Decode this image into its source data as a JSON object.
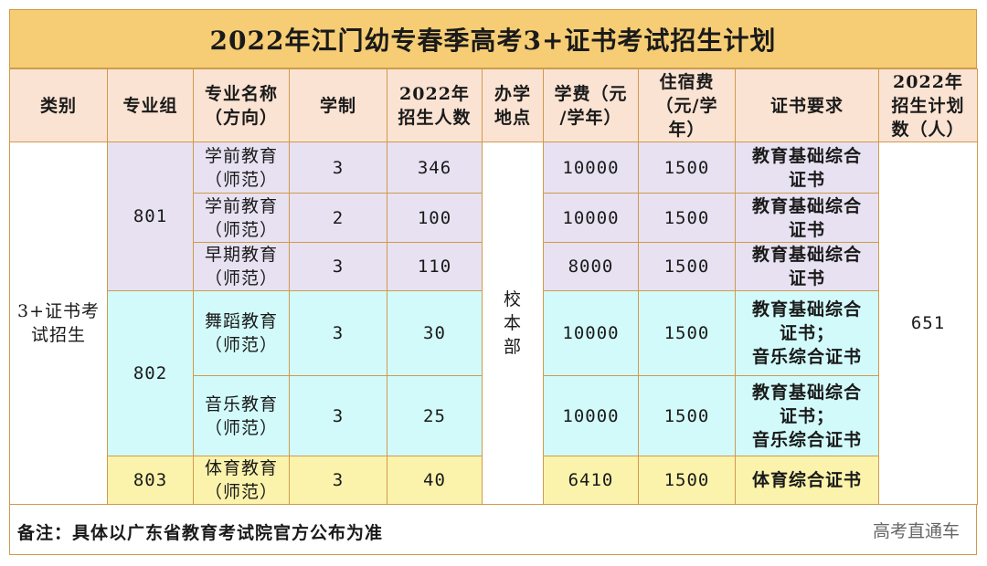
{
  "title": "2022年江门幼专春季高考3+证书考试招生计划",
  "headers": {
    "category": "类别",
    "group": "专业组",
    "major": "专业名称\n（方向）",
    "years": "学制",
    "enroll": "2022年\n招生人数",
    "campus": "办学\n地点",
    "tuition": "学费（元\n/学年）",
    "dorm": "住宿费\n（元/学\n年）",
    "cert": "证书要求",
    "plan": "2022年\n招生计划\n数（人）"
  },
  "category": "3+证书考\n试招生",
  "campus": "校\n本\n部",
  "plan_total": "651",
  "groups": [
    {
      "code": "801"
    },
    {
      "code": "802"
    },
    {
      "code": "803"
    }
  ],
  "rows": [
    {
      "major": "学前教育\n（师范）",
      "years": "3",
      "enroll": "346",
      "tuition": "10000",
      "dorm": "1500",
      "cert": "教育基础综合\n证书"
    },
    {
      "major": "学前教育\n（师范）",
      "years": "2",
      "enroll": "100",
      "tuition": "10000",
      "dorm": "1500",
      "cert": "教育基础综合\n证书"
    },
    {
      "major": "早期教育\n（师范）",
      "years": "3",
      "enroll": "110",
      "tuition": "8000",
      "dorm": "1500",
      "cert": "教育基础综合\n证书"
    },
    {
      "major": "舞蹈教育\n（师范）",
      "years": "3",
      "enroll": "30",
      "tuition": "10000",
      "dorm": "1500",
      "cert": "教育基础综合\n证书；\n音乐综合证书"
    },
    {
      "major": "音乐教育\n（师范）",
      "years": "3",
      "enroll": "25",
      "tuition": "10000",
      "dorm": "1500",
      "cert": "教育基础综合\n证书；\n音乐综合证书"
    },
    {
      "major": "体育教育\n（师范）",
      "years": "3",
      "enroll": "40",
      "tuition": "6410",
      "dorm": "1500",
      "cert": "体育综合证书"
    }
  ],
  "note": "备注：具体以广东省教育考试院官方公布为准",
  "watermark": "高考直通车",
  "colors": {
    "border": "#d09a4c",
    "title_bg": "#f6cd74",
    "header_bg": "#fbe3d3",
    "group_801": "#e7e1f1",
    "group_802": "#d2fafa",
    "group_803": "#fbf3ab"
  }
}
